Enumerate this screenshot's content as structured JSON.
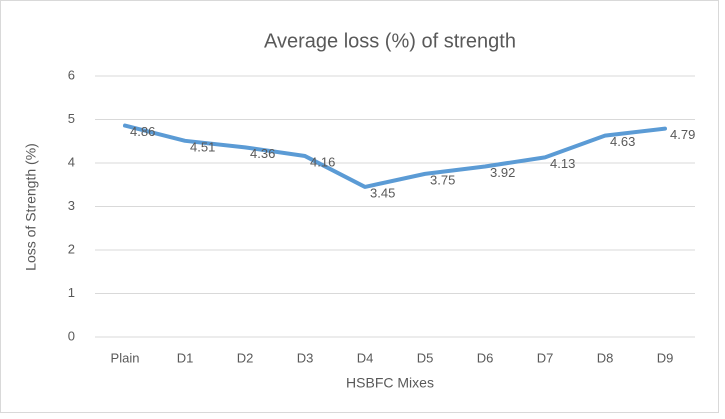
{
  "chart_data": {
    "type": "line",
    "title": "Average loss (%) of strength",
    "x_label": "HSBFC Mixes",
    "y_label": "Loss of Strength (%)",
    "categories": [
      "Plain",
      "D1",
      "D2",
      "D3",
      "D4",
      "D5",
      "D6",
      "D7",
      "D8",
      "D9"
    ],
    "series": [
      {
        "name": "Average loss",
        "color": "#5b9bd5",
        "values": [
          4.86,
          4.51,
          4.36,
          4.16,
          3.45,
          3.75,
          3.92,
          4.13,
          4.63,
          4.79
        ]
      }
    ],
    "ylim": [
      0,
      6
    ],
    "yticks": [
      0,
      1,
      2,
      3,
      4,
      5,
      6
    ],
    "grid": true,
    "data_labels": true
  }
}
